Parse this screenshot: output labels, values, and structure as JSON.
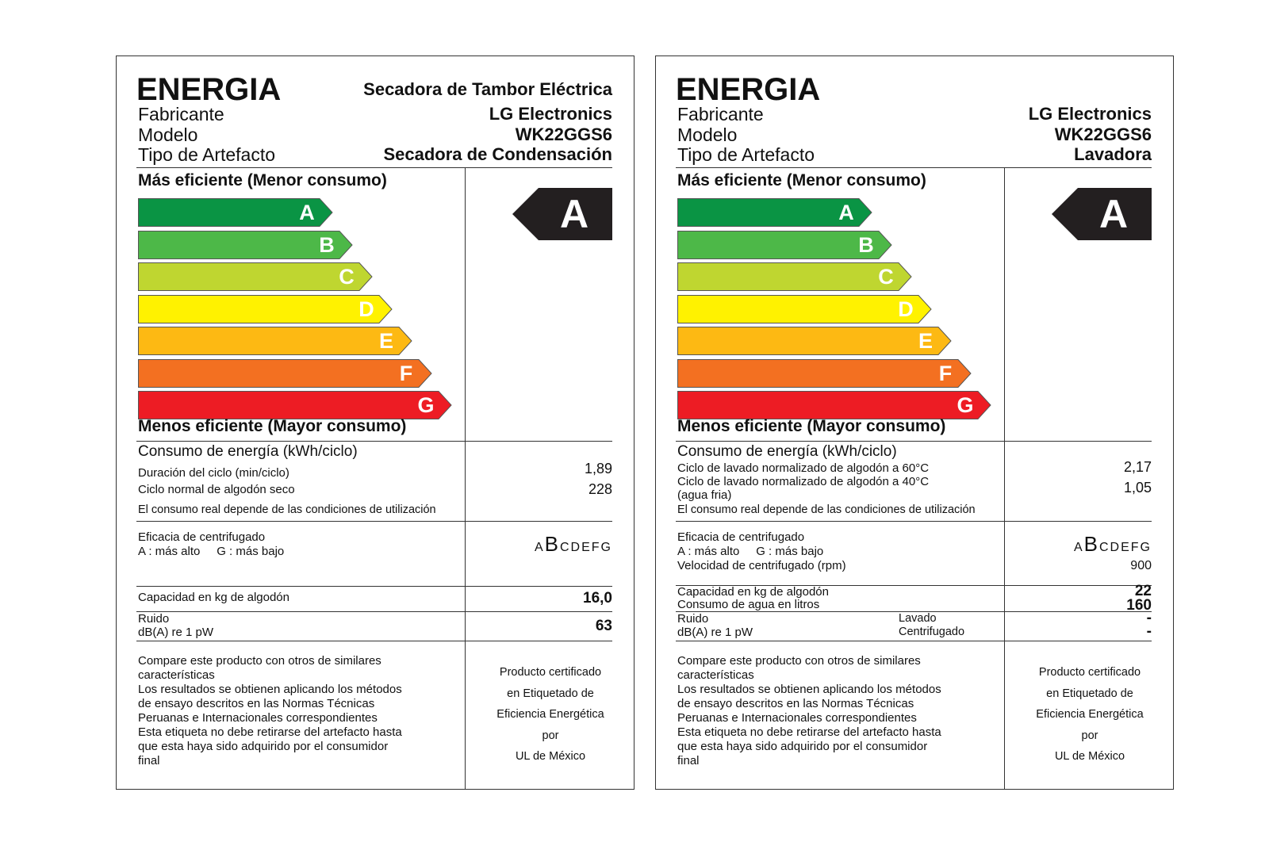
{
  "scale_letters": [
    "A",
    "B",
    "C",
    "D",
    "E",
    "F",
    "G"
  ],
  "scale_colors": [
    "#0a9444",
    "#4db848",
    "#bfd630",
    "#fff200",
    "#fdb913",
    "#f37021",
    "#ed1c24"
  ],
  "rating_color": "#231f20",
  "labels": [
    {
      "energia": "ENERGIA",
      "appliance_title": "Secadora de Tambor Eléctrica",
      "fabricante_label": "Fabricante",
      "fabricante_value": "LG Electronics",
      "modelo_label": "Modelo",
      "modelo_value": "WK22GGS6",
      "tipo_label": "Tipo de Artefacto",
      "tipo_value": "Secadora de Condensación",
      "mas_eficiente": "Más eficiente (Menor consumo)",
      "menos_eficiente": "Menos eficiente (Mayor consumo)",
      "rating": "A",
      "consumo_title": "Consumo de energía (kWh/ciclo)",
      "consumo_rows": [
        {
          "label": "Duración del ciclo (min/ciclo)",
          "value": "1,89"
        },
        {
          "label": "Ciclo normal de algodón seco",
          "value": "228"
        }
      ],
      "consumo_note": "El consumo real depende de las condiciones de utilización",
      "eficacia_label": "Eficacia de centrifugado",
      "eficacia_sub": "A : más alto     G : más bajo",
      "eficacia_scale_before": "A",
      "eficacia_scale_big": "B",
      "eficacia_scale_after": "CDEFG",
      "capacidad_label": "Capacidad en kg de algodón",
      "capacidad_value": "16,0",
      "ruido_label": "Ruido",
      "ruido_sub": "dB(A) re 1 pW",
      "ruido_value": "63",
      "notes": [
        "Compare este producto con otros de similares",
        "características",
        "Los resultados se obtienen aplicando los métodos",
        "de ensayo descritos en las Normas Técnicas",
        "Peruanas e Internacionales correspondientes",
        "Esta etiqueta no debe retirarse del artefacto hasta",
        "que esta haya sido adquirido por el consumidor",
        "final"
      ],
      "cert": [
        "Producto certificado",
        "en Etiquetado de",
        "Eficiencia Energética",
        "por",
        "UL de México"
      ]
    },
    {
      "energia": "ENERGIA",
      "fabricante_label": "Fabricante",
      "fabricante_value": "LG Electronics",
      "modelo_label": "Modelo",
      "modelo_value": "WK22GGS6",
      "tipo_label": "Tipo de Artefacto",
      "tipo_value": "Lavadora",
      "mas_eficiente": "Más eficiente (Menor consumo)",
      "menos_eficiente": "Menos eficiente (Mayor consumo)",
      "rating": "A",
      "consumo_title": "Consumo de energía (kWh/ciclo)",
      "consumo_rows": [
        {
          "label": "Ciclo de lavado normalizado de algodón a 60°C",
          "value": "2,17"
        },
        {
          "label": "Ciclo de lavado normalizado de algodón a 40°C",
          "value": "1,05"
        },
        {
          "label": "(agua fria)",
          "value": ""
        }
      ],
      "consumo_note": "El consumo real depende de las condiciones de utilización",
      "eficacia_label": "Eficacia de centrifugado",
      "eficacia_sub": "A : más alto     G : más bajo",
      "velocidad_label": "Velocidad de centrifugado (rpm)",
      "velocidad_value": "900",
      "eficacia_scale_before": "A",
      "eficacia_scale_big": "B",
      "eficacia_scale_after": "CDEFG",
      "capacidad_label": "Capacidad en kg de algodón",
      "capacidad_value": "22",
      "agua_label": "Consumo de agua en litros",
      "agua_value": "160",
      "ruido_label": "Ruido",
      "ruido_sub": "dB(A) re 1 pW",
      "ruido_lavado_label": "Lavado",
      "ruido_centrifugado_label": "Centrifugado",
      "ruido_lavado_value": "-",
      "ruido_centrifugado_value": "-",
      "notes": [
        "Compare este producto con otros de similares",
        "características",
        "Los resultados se obtienen aplicando los métodos",
        "de ensayo descritos en las Normas Técnicas",
        "Peruanas e Internacionales correspondientes",
        "Esta etiqueta no debe retirarse del artefacto hasta",
        "que esta haya sido adquirido por el consumidor",
        "final"
      ],
      "cert": [
        "Producto certificado",
        "en Etiquetado de",
        "Eficiencia Energética",
        "por",
        "UL de México"
      ]
    }
  ]
}
